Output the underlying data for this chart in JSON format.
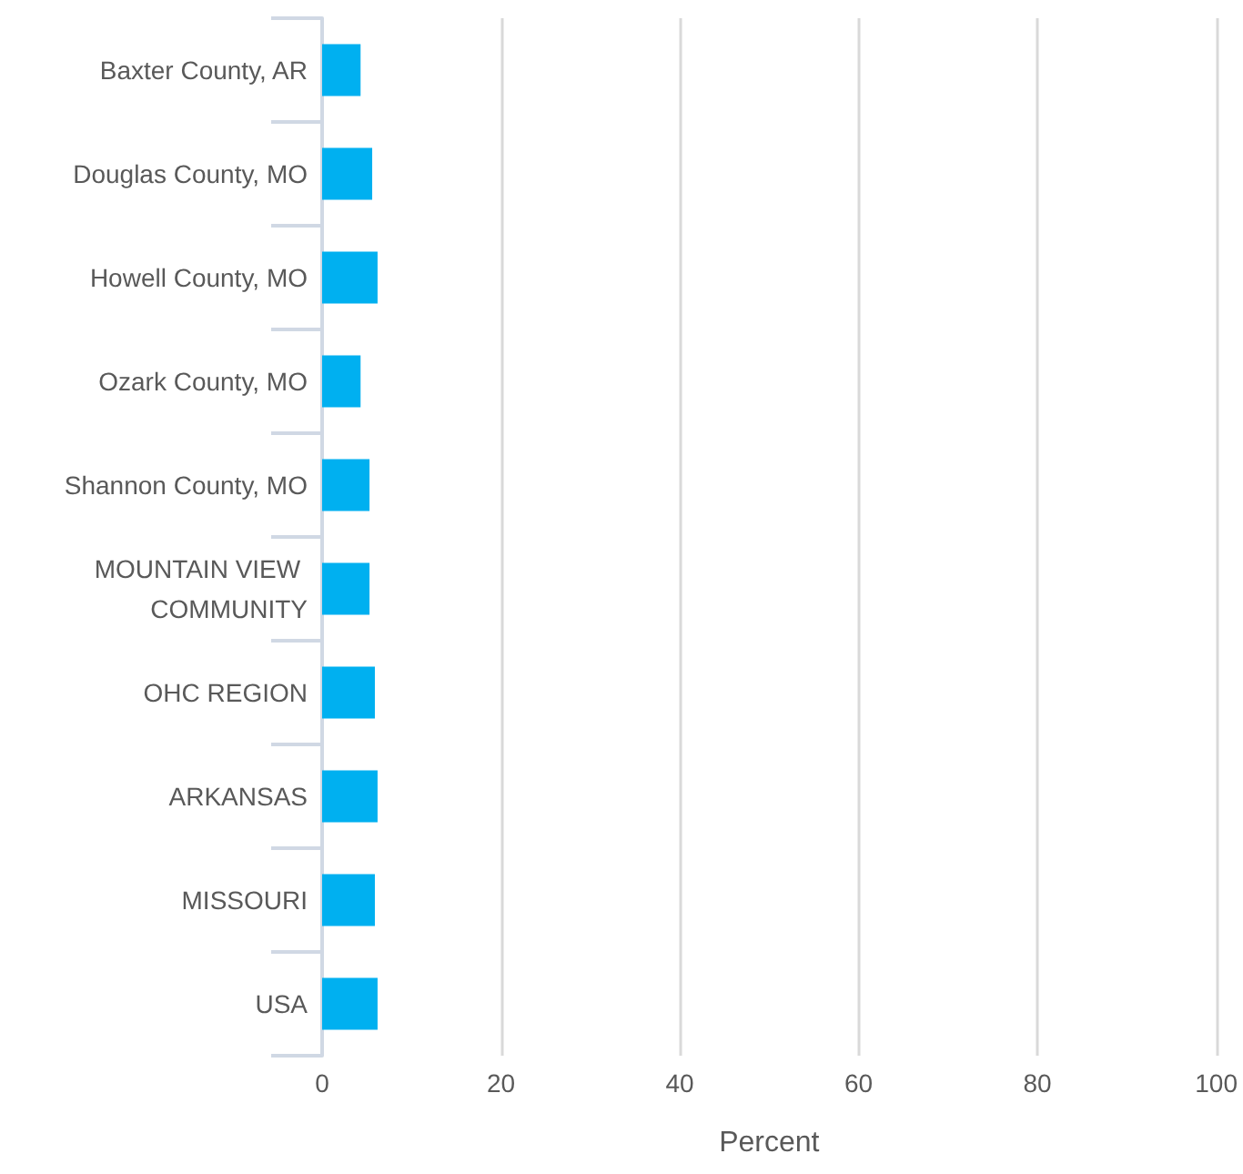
{
  "chart_data": {
    "type": "bar",
    "orientation": "horizontal",
    "xlabel": "Percent",
    "categories": [
      "Baxter County, AR",
      "Douglas County, MO",
      "Howell County, MO",
      "Ozark County, MO",
      "Shannon County, MO",
      "MOUNTAIN VIEW COMMUNITY",
      "OHC REGION",
      "ARKANSAS",
      "MISSOURI",
      "USA"
    ],
    "values": [
      4.3,
      5.6,
      6.2,
      4.3,
      5.3,
      5.3,
      5.9,
      6.2,
      5.9,
      6.2
    ],
    "color": "#00b0f0",
    "xlim": [
      0,
      100
    ],
    "xticks": [
      0,
      20,
      40,
      60,
      80,
      100
    ],
    "grid": "x"
  }
}
